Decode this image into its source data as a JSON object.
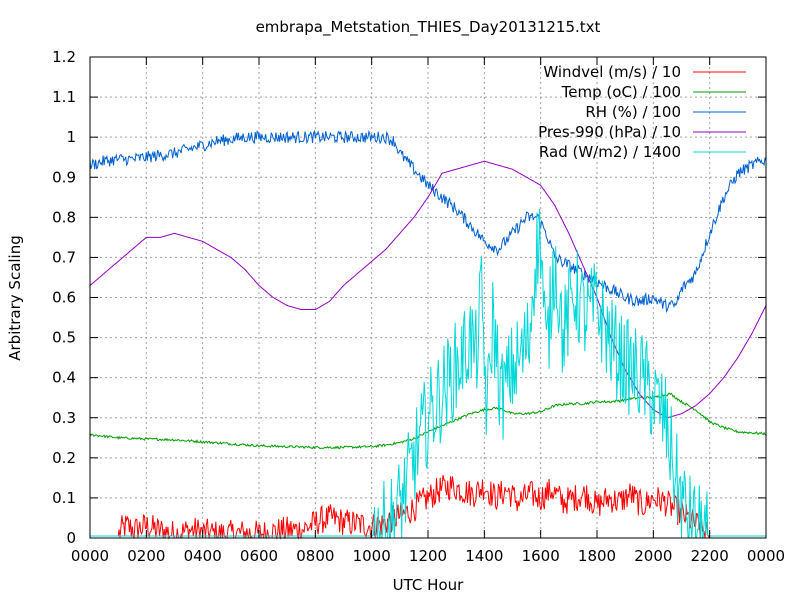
{
  "chart_data": {
    "type": "line",
    "title": "embrapa_Metstation_THIES_Day20131215.txt",
    "xlabel": "UTC Hour",
    "ylabel": "Arbitrary Scaling",
    "xlim": [
      0,
      24
    ],
    "ylim": [
      0,
      1.2
    ],
    "grid": true,
    "legend_position": "top-right",
    "x_ticks": [
      "0000",
      "0200",
      "0400",
      "0600",
      "0800",
      "1000",
      "1200",
      "1400",
      "1600",
      "1800",
      "2000",
      "2200",
      "0000"
    ],
    "y_ticks": [
      "0",
      "0.1",
      "0.2",
      "0.3",
      "0.4",
      "0.5",
      "0.6",
      "0.7",
      "0.8",
      "0.9",
      "1",
      "1.1",
      "1.2"
    ],
    "series": [
      {
        "name": "Windvel (m/s) / 10",
        "color": "#ff0000",
        "x": [
          0,
          1,
          1.1,
          1.3,
          1.6,
          2.0,
          2.4,
          3.0,
          3.6,
          4.0,
          4.5,
          5.0,
          5.5,
          6.0,
          6.5,
          7.0,
          7.5,
          7.8,
          8.2,
          8.6,
          9.0,
          9.5,
          10.0,
          10.4,
          10.8,
          11.2,
          11.6,
          12.0,
          12.4,
          12.8,
          13.2,
          13.6,
          14.0,
          14.4,
          14.8,
          15.2,
          15.6,
          16.0,
          16.4,
          16.8,
          17.2,
          17.6,
          18.0,
          18.4,
          18.8,
          19.2,
          19.6,
          20.0,
          20.4,
          20.8,
          21.2,
          21.6,
          21.9,
          22.0,
          24
        ],
        "y": [
          0.005,
          0.005,
          0.02,
          0.03,
          0.02,
          0.03,
          0.02,
          0.01,
          0.02,
          0.015,
          0.01,
          0.01,
          0.012,
          0.01,
          0.015,
          0.02,
          0.02,
          0.03,
          0.045,
          0.05,
          0.04,
          0.035,
          0.03,
          0.035,
          0.05,
          0.06,
          0.08,
          0.1,
          0.12,
          0.13,
          0.12,
          0.11,
          0.13,
          0.1,
          0.12,
          0.09,
          0.11,
          0.1,
          0.12,
          0.09,
          0.1,
          0.11,
          0.08,
          0.1,
          0.09,
          0.11,
          0.08,
          0.1,
          0.09,
          0.07,
          0.05,
          0.03,
          0.01,
          0.0,
          0.0
        ],
        "noise": 0.035
      },
      {
        "name": "Temp (oC) / 100",
        "color": "#00a000",
        "x": [
          0,
          1,
          2,
          3,
          4,
          5,
          6,
          7,
          8,
          9,
          10,
          10.5,
          11,
          11.5,
          12,
          12.5,
          13,
          13.5,
          14,
          14.5,
          15,
          15.5,
          16,
          16.5,
          17,
          17.5,
          18,
          18.5,
          19,
          19.5,
          20,
          20.3,
          20.6,
          21,
          21.5,
          22,
          22.5,
          23,
          24
        ],
        "y": [
          0.258,
          0.25,
          0.247,
          0.245,
          0.24,
          0.235,
          0.23,
          0.228,
          0.226,
          0.226,
          0.228,
          0.232,
          0.238,
          0.248,
          0.265,
          0.28,
          0.295,
          0.31,
          0.32,
          0.325,
          0.31,
          0.31,
          0.315,
          0.33,
          0.335,
          0.335,
          0.34,
          0.34,
          0.345,
          0.35,
          0.35,
          0.355,
          0.36,
          0.34,
          0.32,
          0.29,
          0.275,
          0.265,
          0.26
        ],
        "noise": 0.003
      },
      {
        "name": "RH (%) / 100",
        "color": "#0060d0",
        "x": [
          0,
          0.5,
          1,
          1.5,
          2,
          2.5,
          3,
          3.5,
          4,
          4.5,
          5,
          5.5,
          6,
          7,
          8,
          9,
          10,
          10.5,
          10.8,
          11,
          11.5,
          12,
          12.5,
          13,
          13.5,
          14,
          14.5,
          15,
          15.5,
          15.9,
          16.2,
          16.5,
          17,
          17.5,
          18,
          18.5,
          19,
          19.5,
          20,
          20.4,
          20.8,
          21,
          21.5,
          22,
          22.5,
          23,
          23.5,
          24
        ],
        "y": [
          0.93,
          0.94,
          0.945,
          0.945,
          0.95,
          0.955,
          0.96,
          0.97,
          0.98,
          0.99,
          0.995,
          1.0,
          1.0,
          1.0,
          1.0,
          1.0,
          1.0,
          1.0,
          0.99,
          0.96,
          0.92,
          0.88,
          0.85,
          0.82,
          0.78,
          0.74,
          0.72,
          0.76,
          0.8,
          0.8,
          0.76,
          0.7,
          0.68,
          0.66,
          0.64,
          0.62,
          0.6,
          0.59,
          0.6,
          0.58,
          0.58,
          0.62,
          0.66,
          0.76,
          0.85,
          0.91,
          0.93,
          0.945
        ],
        "noise": 0.015
      },
      {
        "name": "Pres-990 (hPa) / 10",
        "color": "#9000c0",
        "x": [
          0,
          0.5,
          1,
          1.5,
          2,
          2.5,
          3,
          3.5,
          4,
          4.5,
          5,
          5.5,
          6,
          6.5,
          7,
          7.5,
          8,
          8.5,
          9,
          9.5,
          10,
          10.5,
          11,
          11.5,
          12,
          12.5,
          13,
          13.5,
          14,
          14.5,
          15,
          15.5,
          16,
          16.5,
          17,
          17.5,
          18,
          18.5,
          19,
          19.5,
          20,
          20.5,
          21,
          21.5,
          22,
          22.5,
          23,
          23.5,
          24
        ],
        "y": [
          0.63,
          0.66,
          0.69,
          0.72,
          0.75,
          0.75,
          0.76,
          0.75,
          0.74,
          0.72,
          0.7,
          0.67,
          0.63,
          0.6,
          0.58,
          0.57,
          0.57,
          0.59,
          0.63,
          0.66,
          0.69,
          0.72,
          0.76,
          0.8,
          0.85,
          0.91,
          0.92,
          0.93,
          0.94,
          0.93,
          0.92,
          0.9,
          0.88,
          0.83,
          0.76,
          0.68,
          0.6,
          0.5,
          0.42,
          0.36,
          0.32,
          0.3,
          0.31,
          0.33,
          0.36,
          0.4,
          0.45,
          0.51,
          0.58
        ],
        "noise": 0.0
      },
      {
        "name": "Rad (W/m2) / 1400",
        "color": "#00d8d8",
        "x": [
          0,
          10,
          10.4,
          10.8,
          11.2,
          11.6,
          12.0,
          12.4,
          12.8,
          13.2,
          13.5,
          13.7,
          13.9,
          14.1,
          14.3,
          14.6,
          15.0,
          15.3,
          15.6,
          15.8,
          16.0,
          16.2,
          16.5,
          16.8,
          17.2,
          17.6,
          18.0,
          18.4,
          18.8,
          19.2,
          19.6,
          20.0,
          20.4,
          20.8,
          21.2,
          21.6,
          22,
          24
        ],
        "y": [
          0.005,
          0.005,
          0.02,
          0.05,
          0.12,
          0.22,
          0.3,
          0.35,
          0.4,
          0.45,
          0.5,
          0.45,
          0.6,
          0.3,
          0.55,
          0.35,
          0.42,
          0.45,
          0.5,
          0.7,
          0.75,
          0.45,
          0.7,
          0.5,
          0.62,
          0.55,
          0.58,
          0.5,
          0.45,
          0.42,
          0.4,
          0.35,
          0.3,
          0.15,
          0.05,
          0.02,
          0.005,
          0.005
        ],
        "noise": 0.12
      }
    ]
  }
}
